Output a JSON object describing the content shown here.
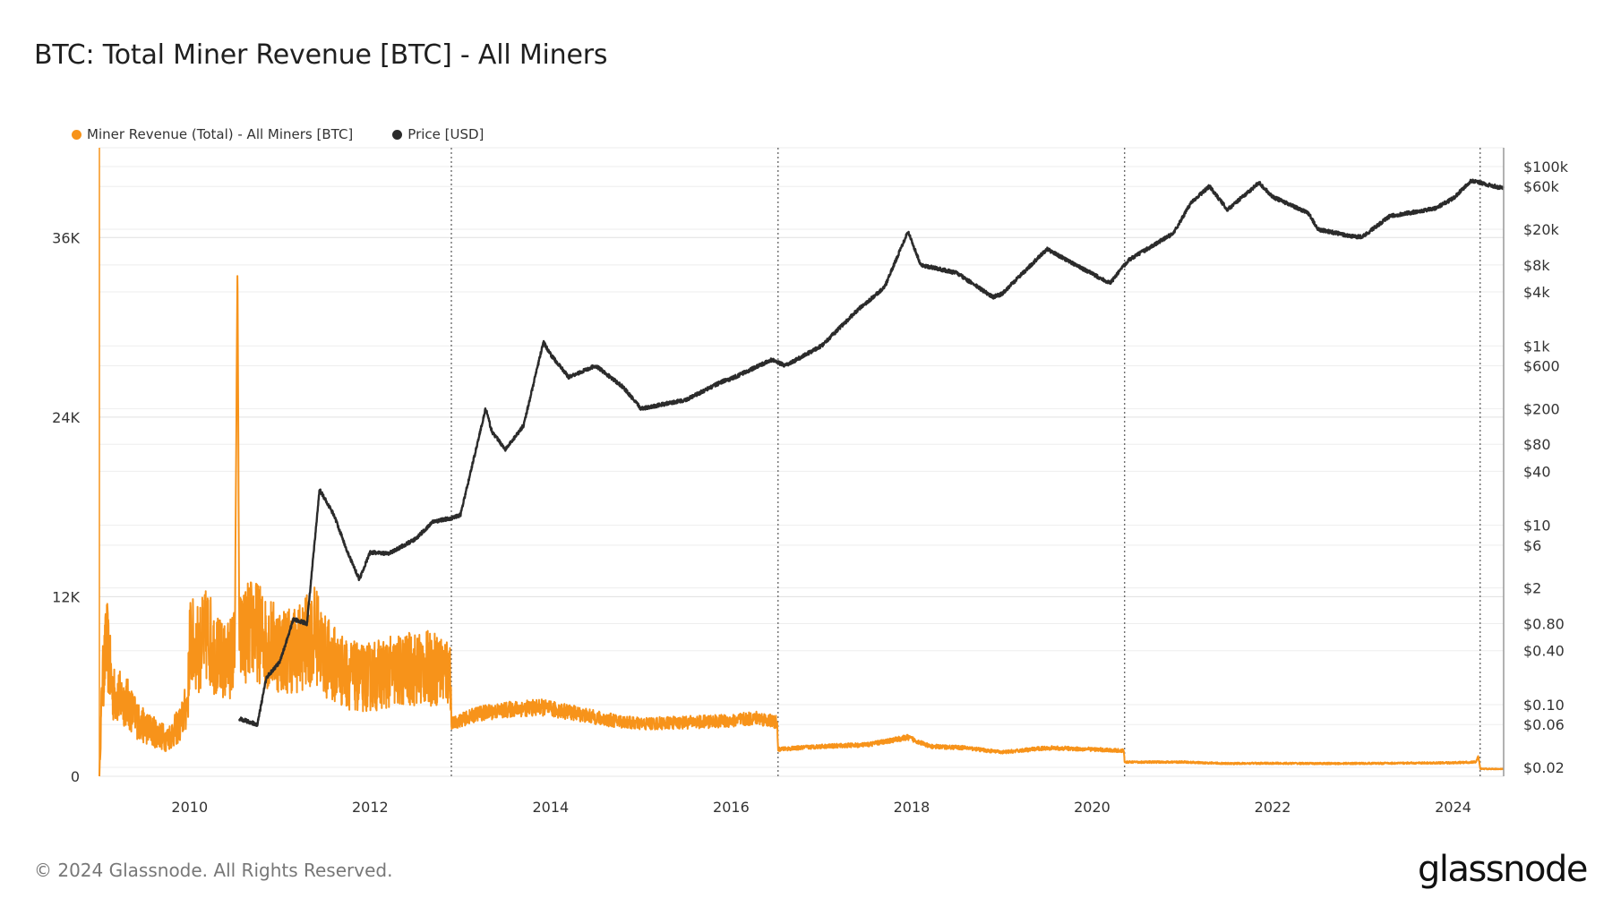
{
  "chart_data": {
    "type": "line",
    "title": "BTC: Total Miner Revenue [BTC] - All Miners",
    "copyright": "© 2024 Glassnode. All Rights Reserved.",
    "logo": "glassnode",
    "xlim": [
      2009.0,
      2024.56
    ],
    "x_ticks": [
      "2010",
      "2012",
      "2014",
      "2016",
      "2018",
      "2020",
      "2022",
      "2024"
    ],
    "y_left": {
      "ylim": [
        0,
        42000
      ],
      "ticks": [
        {
          "v": 0,
          "label": "0"
        },
        {
          "v": 12000,
          "label": "12K"
        },
        {
          "v": 24000,
          "label": "24K"
        },
        {
          "v": 36000,
          "label": "36K"
        }
      ]
    },
    "y_right": {
      "scale": "log",
      "ylim": [
        0.0159,
        162000
      ],
      "ticks": [
        {
          "v": 100000,
          "label": "$100k"
        },
        {
          "v": 60000,
          "label": "$60k"
        },
        {
          "v": 20000,
          "label": "$20k"
        },
        {
          "v": 8000,
          "label": "$8k"
        },
        {
          "v": 4000,
          "label": "$4k"
        },
        {
          "v": 1000,
          "label": "$1k"
        },
        {
          "v": 600,
          "label": "$600"
        },
        {
          "v": 200,
          "label": "$200"
        },
        {
          "v": 80,
          "label": "$80"
        },
        {
          "v": 40,
          "label": "$40"
        },
        {
          "v": 10,
          "label": "$10"
        },
        {
          "v": 6,
          "label": "$6"
        },
        {
          "v": 2,
          "label": "$2"
        },
        {
          "v": 0.8,
          "label": "$0.80"
        },
        {
          "v": 0.4,
          "label": "$0.40"
        },
        {
          "v": 0.1,
          "label": "$0.10"
        },
        {
          "v": 0.06,
          "label": "$0.06"
        },
        {
          "v": 0.02,
          "label": "$0.02"
        }
      ]
    },
    "halving_lines": [
      2012.9,
      2016.52,
      2020.36,
      2024.3
    ],
    "grid": true,
    "legend_placement": "top-left",
    "series": [
      {
        "name": "Miner Revenue (Total) - All Miners [BTC]",
        "axis": "left",
        "color": "#f7931a",
        "points": [
          [
            2009.0,
            0
          ],
          [
            2009.03,
            6000
          ],
          [
            2009.08,
            9000
          ],
          [
            2009.15,
            5500
          ],
          [
            2009.3,
            5000
          ],
          [
            2009.45,
            3500
          ],
          [
            2009.6,
            3000
          ],
          [
            2009.75,
            2500
          ],
          [
            2009.9,
            3500
          ],
          [
            2009.98,
            5000
          ],
          [
            2010.0,
            9000
          ],
          [
            2010.1,
            8500
          ],
          [
            2010.2,
            9500
          ],
          [
            2010.3,
            8000
          ],
          [
            2010.4,
            7500
          ],
          [
            2010.5,
            8500
          ],
          [
            2010.53,
            34500
          ],
          [
            2010.55,
            9000
          ],
          [
            2010.7,
            10000
          ],
          [
            2010.85,
            9000
          ],
          [
            2011.0,
            8500
          ],
          [
            2011.2,
            8500
          ],
          [
            2011.4,
            9500
          ],
          [
            2011.5,
            8000
          ],
          [
            2011.7,
            7000
          ],
          [
            2011.9,
            6500
          ],
          [
            2012.1,
            6800
          ],
          [
            2012.3,
            7000
          ],
          [
            2012.5,
            7200
          ],
          [
            2012.7,
            7200
          ],
          [
            2012.89,
            7000
          ],
          [
            2012.9,
            3500
          ],
          [
            2013.2,
            4200
          ],
          [
            2013.6,
            4500
          ],
          [
            2013.9,
            4600
          ],
          [
            2014.2,
            4300
          ],
          [
            2014.6,
            3800
          ],
          [
            2015.0,
            3500
          ],
          [
            2015.5,
            3600
          ],
          [
            2016.0,
            3700
          ],
          [
            2016.3,
            3900
          ],
          [
            2016.51,
            3600
          ],
          [
            2016.52,
            1800
          ],
          [
            2017.0,
            2000
          ],
          [
            2017.5,
            2100
          ],
          [
            2017.96,
            2600
          ],
          [
            2018.2,
            2000
          ],
          [
            2018.6,
            1900
          ],
          [
            2019.0,
            1600
          ],
          [
            2019.5,
            1900
          ],
          [
            2020.0,
            1800
          ],
          [
            2020.35,
            1700
          ],
          [
            2020.36,
            950
          ],
          [
            2021.0,
            950
          ],
          [
            2021.5,
            850
          ],
          [
            2022.0,
            870
          ],
          [
            2022.5,
            850
          ],
          [
            2023.0,
            860
          ],
          [
            2023.5,
            880
          ],
          [
            2024.0,
            900
          ],
          [
            2024.25,
            950
          ],
          [
            2024.28,
            1300
          ],
          [
            2024.3,
            500
          ],
          [
            2024.56,
            480
          ]
        ]
      },
      {
        "name": "Price [USD]",
        "axis": "right",
        "color": "#2b2b2b",
        "points": [
          [
            2010.55,
            0.07
          ],
          [
            2010.75,
            0.06
          ],
          [
            2010.85,
            0.2
          ],
          [
            2011.0,
            0.3
          ],
          [
            2011.15,
            0.9
          ],
          [
            2011.3,
            0.8
          ],
          [
            2011.44,
            25
          ],
          [
            2011.6,
            13
          ],
          [
            2011.75,
            5
          ],
          [
            2011.88,
            2.5
          ],
          [
            2012.0,
            5
          ],
          [
            2012.2,
            4.8
          ],
          [
            2012.5,
            7
          ],
          [
            2012.7,
            11
          ],
          [
            2012.9,
            12
          ],
          [
            2013.0,
            13
          ],
          [
            2013.28,
            200
          ],
          [
            2013.35,
            110
          ],
          [
            2013.5,
            70
          ],
          [
            2013.7,
            130
          ],
          [
            2013.92,
            1100
          ],
          [
            2014.0,
            800
          ],
          [
            2014.2,
            450
          ],
          [
            2014.5,
            600
          ],
          [
            2014.8,
            350
          ],
          [
            2015.0,
            200
          ],
          [
            2015.5,
            250
          ],
          [
            2015.9,
            400
          ],
          [
            2016.0,
            430
          ],
          [
            2016.45,
            700
          ],
          [
            2016.6,
            600
          ],
          [
            2017.0,
            1000
          ],
          [
            2017.4,
            2500
          ],
          [
            2017.7,
            4500
          ],
          [
            2017.96,
            19000
          ],
          [
            2018.1,
            8000
          ],
          [
            2018.5,
            6500
          ],
          [
            2018.9,
            3500
          ],
          [
            2019.0,
            3800
          ],
          [
            2019.5,
            12000
          ],
          [
            2019.9,
            7200
          ],
          [
            2020.2,
            5000
          ],
          [
            2020.4,
            9000
          ],
          [
            2020.9,
            18000
          ],
          [
            2021.1,
            40000
          ],
          [
            2021.3,
            60000
          ],
          [
            2021.5,
            33000
          ],
          [
            2021.85,
            66000
          ],
          [
            2022.0,
            46000
          ],
          [
            2022.4,
            30000
          ],
          [
            2022.5,
            20000
          ],
          [
            2022.9,
            16500
          ],
          [
            2023.0,
            16600
          ],
          [
            2023.3,
            28000
          ],
          [
            2023.8,
            34000
          ],
          [
            2024.0,
            44000
          ],
          [
            2024.2,
            70000
          ],
          [
            2024.4,
            62000
          ],
          [
            2024.56,
            57000
          ]
        ]
      }
    ]
  }
}
